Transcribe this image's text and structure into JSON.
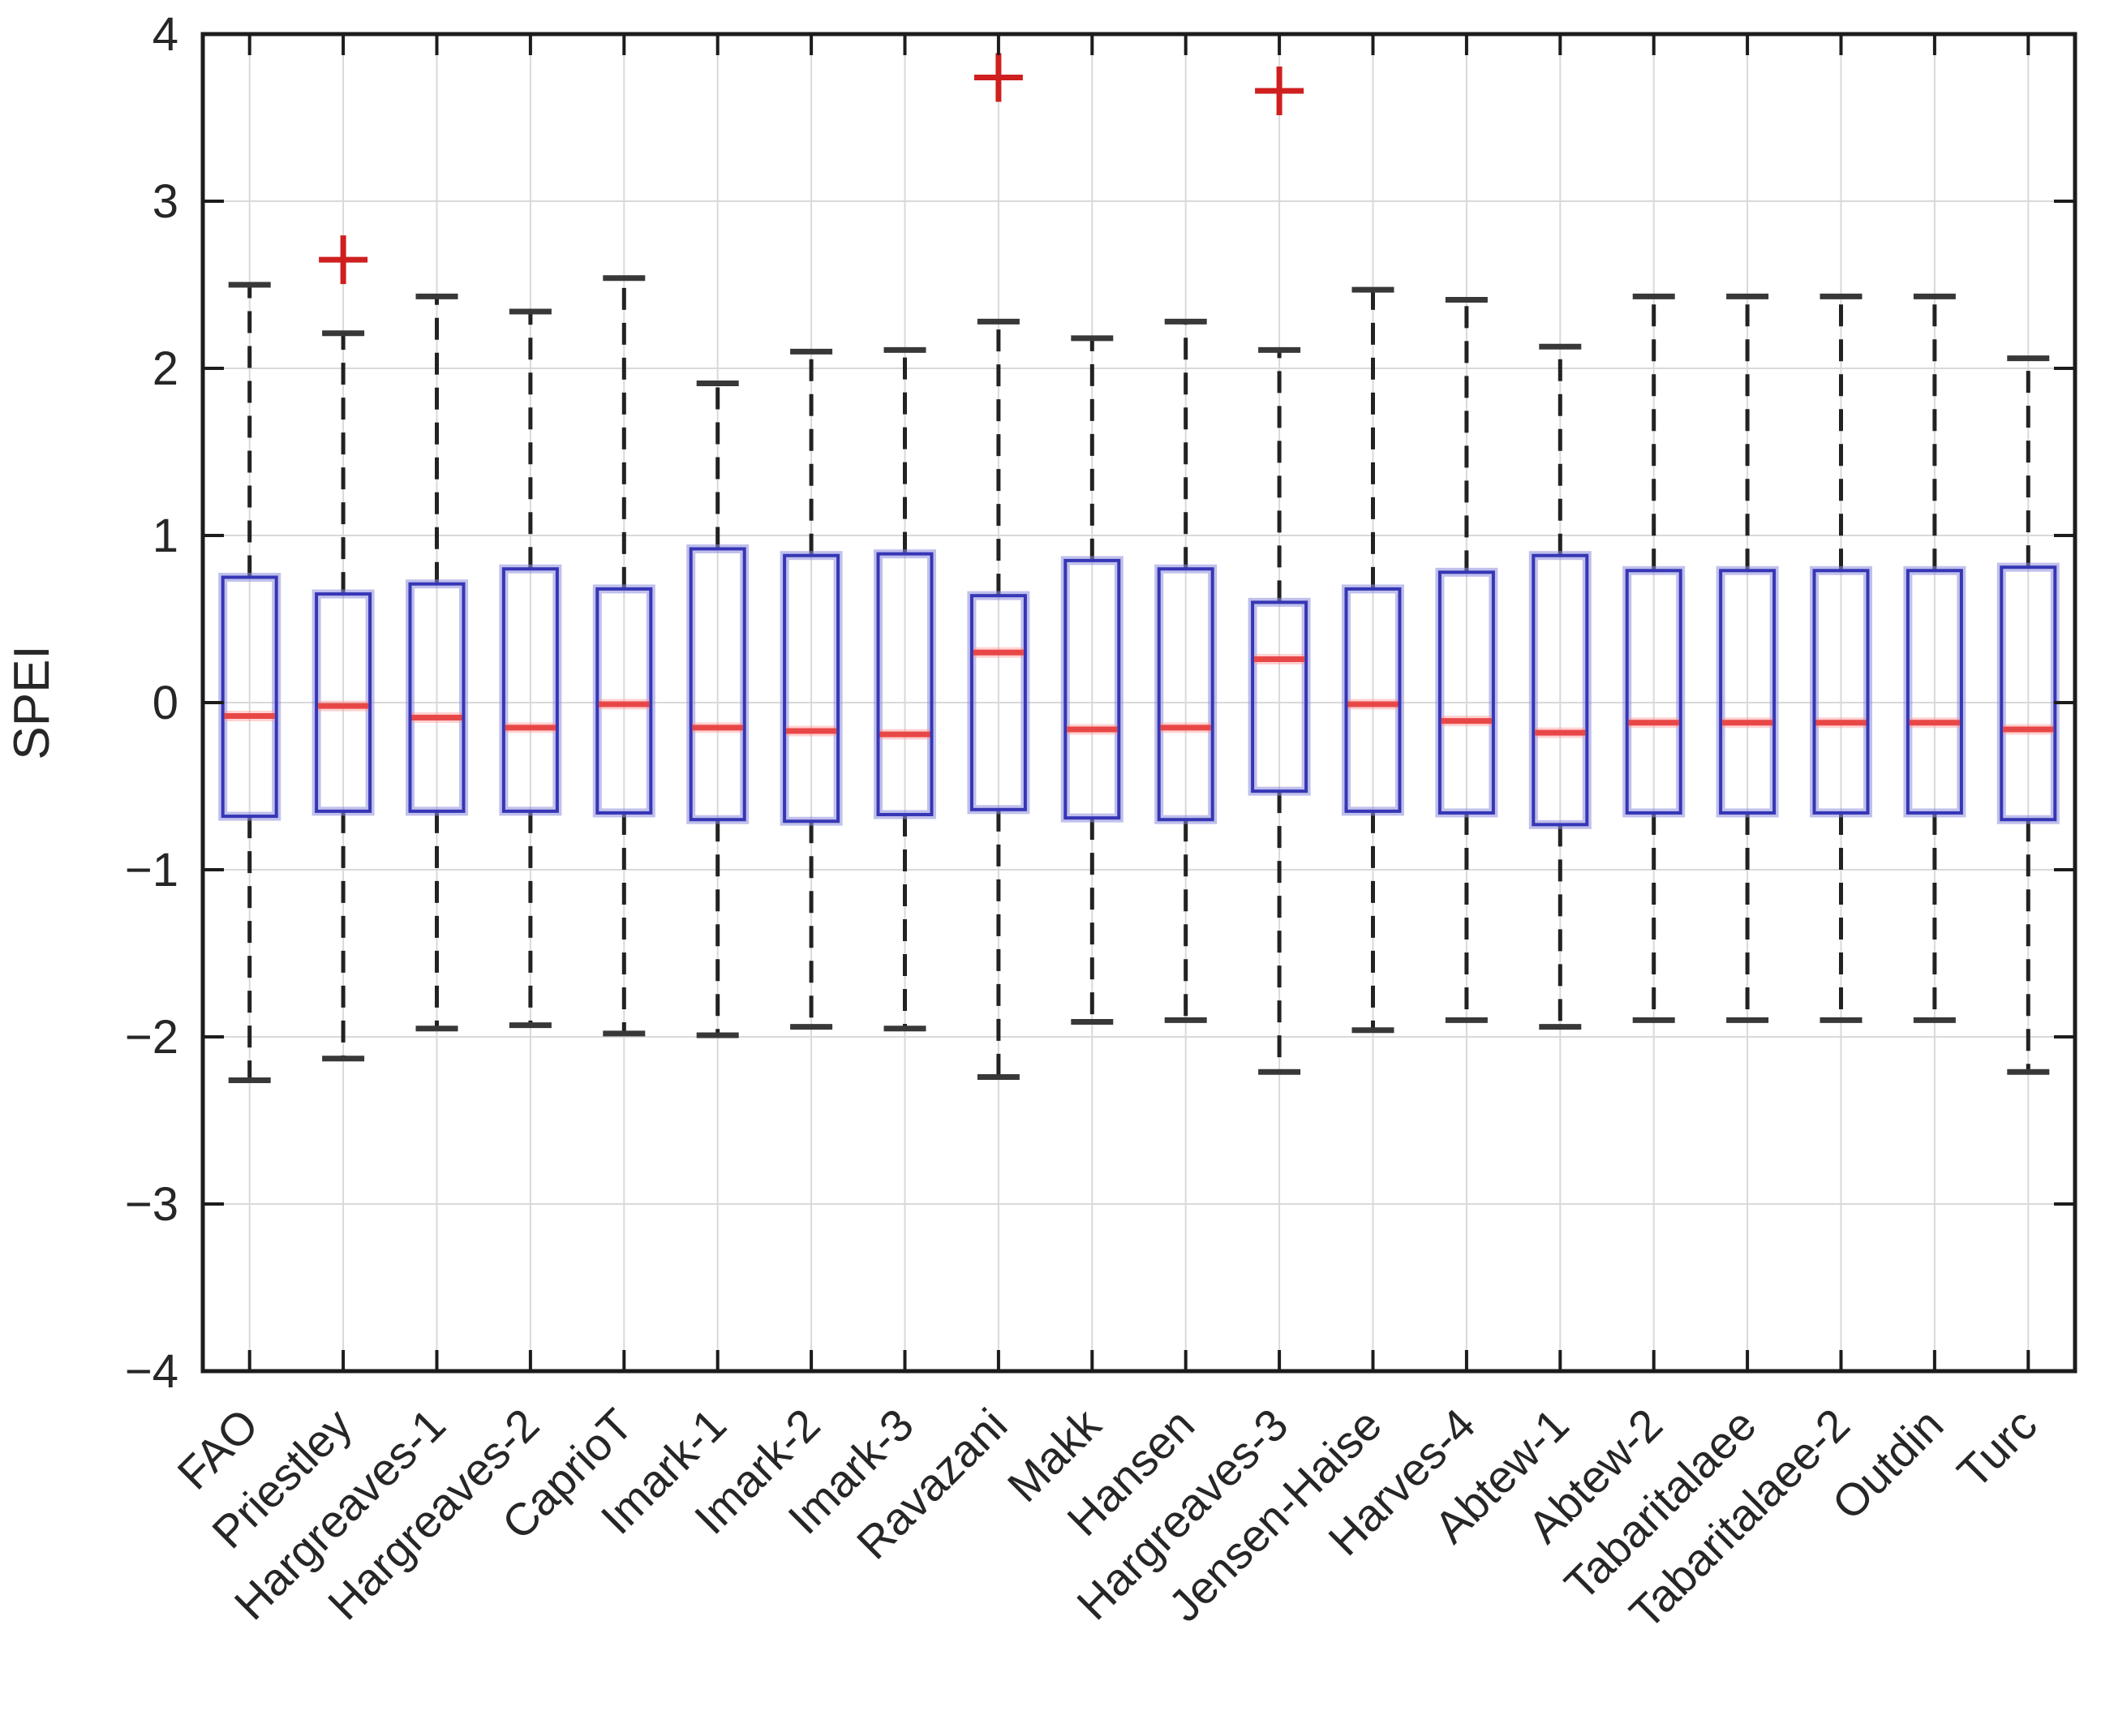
{
  "figure": {
    "ylabel": "SPEI",
    "background": "#ffffff"
  },
  "colors": {
    "axis": "#1c1c1c",
    "grid": "#d9d9d9",
    "box_edge": "#3636b6",
    "box_glow": "#8c8cdd",
    "median": "#e84747",
    "median_glow": "#ff9a9a",
    "whisker": "#222222",
    "cap": "#383838",
    "outlier": "#cf1f1f",
    "text": "#262626"
  },
  "chart_data": {
    "type": "boxplot",
    "title": "",
    "xlabel": "",
    "ylabel": "SPEI",
    "ylim": [
      -4,
      4
    ],
    "yticks": [
      4,
      3,
      2,
      1,
      0,
      -1,
      -2,
      -3,
      -4
    ],
    "grid": true,
    "legend": "none",
    "x_tick_rotation_deg": -45,
    "categories": [
      "FAO",
      "Priestley",
      "Hargreaves-1",
      "Hargreaves-2",
      "CaprioT",
      "Imark-1",
      "Imark-2",
      "Imark-3",
      "Ravazani",
      "Makk",
      "Hansen",
      "Hargreaves-3",
      "Jensen-Haise",
      "Harves-4",
      "Abtew-1",
      "Abtew-2",
      "Tabaritalaee",
      "Tabaritalaee-2",
      "Outdin",
      "Turc"
    ],
    "boxes": [
      {
        "category": "FAO",
        "whisker_low": -2.26,
        "q1": -0.68,
        "median": -0.08,
        "q3": 0.75,
        "whisker_high": 2.5,
        "outliers": []
      },
      {
        "category": "Priestley",
        "whisker_low": -2.13,
        "q1": -0.65,
        "median": -0.02,
        "q3": 0.65,
        "whisker_high": 2.21,
        "outliers": [
          2.65
        ]
      },
      {
        "category": "Hargreaves-1",
        "whisker_low": -1.95,
        "q1": -0.65,
        "median": -0.09,
        "q3": 0.71,
        "whisker_high": 2.43,
        "outliers": []
      },
      {
        "category": "Hargreaves-2",
        "whisker_low": -1.93,
        "q1": -0.65,
        "median": -0.15,
        "q3": 0.8,
        "whisker_high": 2.34,
        "outliers": []
      },
      {
        "category": "CaprioT",
        "whisker_low": -1.98,
        "q1": -0.66,
        "median": -0.01,
        "q3": 0.68,
        "whisker_high": 2.54,
        "outliers": []
      },
      {
        "category": "Imark-1",
        "whisker_low": -1.99,
        "q1": -0.7,
        "median": -0.15,
        "q3": 0.92,
        "whisker_high": 1.91,
        "outliers": []
      },
      {
        "category": "Imark-2",
        "whisker_low": -1.94,
        "q1": -0.71,
        "median": -0.17,
        "q3": 0.88,
        "whisker_high": 2.1,
        "outliers": []
      },
      {
        "category": "Imark-3",
        "whisker_low": -1.95,
        "q1": -0.67,
        "median": -0.19,
        "q3": 0.89,
        "whisker_high": 2.11,
        "outliers": []
      },
      {
        "category": "Ravazani",
        "whisker_low": -2.24,
        "q1": -0.64,
        "median": 0.3,
        "q3": 0.64,
        "whisker_high": 2.28,
        "outliers": [
          3.74
        ]
      },
      {
        "category": "Makk",
        "whisker_low": -1.91,
        "q1": -0.69,
        "median": -0.16,
        "q3": 0.85,
        "whisker_high": 2.18,
        "outliers": []
      },
      {
        "category": "Hansen",
        "whisker_low": -1.9,
        "q1": -0.7,
        "median": -0.15,
        "q3": 0.8,
        "whisker_high": 2.28,
        "outliers": []
      },
      {
        "category": "Hargreaves-3",
        "whisker_low": -2.21,
        "q1": -0.53,
        "median": 0.26,
        "q3": 0.6,
        "whisker_high": 2.11,
        "outliers": [
          3.66
        ]
      },
      {
        "category": "Jensen-Haise",
        "whisker_low": -1.96,
        "q1": -0.65,
        "median": -0.01,
        "q3": 0.68,
        "whisker_high": 2.47,
        "outliers": []
      },
      {
        "category": "Harves-4",
        "whisker_low": -1.9,
        "q1": -0.66,
        "median": -0.11,
        "q3": 0.78,
        "whisker_high": 2.41,
        "outliers": []
      },
      {
        "category": "Abtew-1",
        "whisker_low": -1.94,
        "q1": -0.73,
        "median": -0.18,
        "q3": 0.88,
        "whisker_high": 2.13,
        "outliers": []
      },
      {
        "category": "Abtew-2",
        "whisker_low": -1.9,
        "q1": -0.66,
        "median": -0.12,
        "q3": 0.79,
        "whisker_high": 2.43,
        "outliers": []
      },
      {
        "category": "Tabaritalaee",
        "whisker_low": -1.9,
        "q1": -0.66,
        "median": -0.12,
        "q3": 0.79,
        "whisker_high": 2.43,
        "outliers": []
      },
      {
        "category": "Tabaritalaee-2",
        "whisker_low": -1.9,
        "q1": -0.66,
        "median": -0.12,
        "q3": 0.79,
        "whisker_high": 2.43,
        "outliers": []
      },
      {
        "category": "Outdin",
        "whisker_low": -1.9,
        "q1": -0.66,
        "median": -0.12,
        "q3": 0.79,
        "whisker_high": 2.43,
        "outliers": []
      },
      {
        "category": "Turc",
        "whisker_low": -2.21,
        "q1": -0.7,
        "median": -0.16,
        "q3": 0.81,
        "whisker_high": 2.06,
        "outliers": []
      }
    ]
  }
}
